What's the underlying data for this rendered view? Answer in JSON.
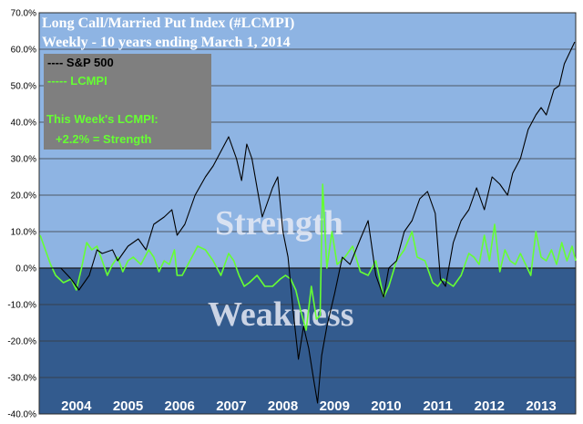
{
  "chart_data": {
    "type": "line",
    "title": "Long Call/Married Put Index (#LCMPI)",
    "subtitle": "Weekly - 10 years ending March 1, 2014",
    "xlabel": "",
    "ylabel": "",
    "ylim": [
      -40,
      70
    ],
    "xlim": [
      2003.78,
      2014.17
    ],
    "y_ticks": [
      "70.0%",
      "60.0%",
      "50.0%",
      "40.0%",
      "30.0%",
      "20.0%",
      "10.0%",
      "0.0%",
      "-10.0%",
      "-20.0%",
      "-30.0%",
      "-40.0%"
    ],
    "y_tick_values": [
      70,
      60,
      50,
      40,
      30,
      20,
      10,
      0,
      -10,
      -20,
      -30,
      -40
    ],
    "x_labels": [
      "2004",
      "2005",
      "2006",
      "2007",
      "2008",
      "2009",
      "2010",
      "2011",
      "2012",
      "2013"
    ],
    "grid": true,
    "legend": {
      "position": "top-left",
      "entries": [
        "---- S&P 500",
        "----- LCMPI"
      ],
      "note_line1": "This Week's LCMPI:",
      "note_line2": "+2.2% = Strength"
    },
    "zones": {
      "above_zero": "Strength",
      "below_zero": "Weakness"
    },
    "colors": {
      "plot_top": "#8eb4e3",
      "plot_bottom": "#335b8e",
      "sp500": "#000000",
      "lcmpi": "#66ff33",
      "legend_box": "#7f7f7f"
    },
    "series": [
      {
        "name": "S&P 500",
        "x": [
          2004.0,
          2004.2,
          2004.4,
          2004.55,
          2004.75,
          2004.9,
          2005.0,
          2005.2,
          2005.3,
          2005.5,
          2005.7,
          2005.85,
          2006.0,
          2006.2,
          2006.35,
          2006.45,
          2006.6,
          2006.8,
          2007.0,
          2007.15,
          2007.3,
          2007.45,
          2007.6,
          2007.7,
          2007.8,
          2007.9,
          2008.0,
          2008.1,
          2008.2,
          2008.3,
          2008.4,
          2008.5,
          2008.6,
          2008.7,
          2008.8,
          2008.9,
          2009.0,
          2009.1,
          2009.17,
          2009.25,
          2009.35,
          2009.5,
          2009.65,
          2009.8,
          2010.0,
          2010.15,
          2010.3,
          2010.45,
          2010.55,
          2010.7,
          2010.85,
          2011.0,
          2011.15,
          2011.3,
          2011.45,
          2011.55,
          2011.65,
          2011.8,
          2011.95,
          2012.1,
          2012.25,
          2012.4,
          2012.55,
          2012.7,
          2012.85,
          2012.95,
          2013.1,
          2013.25,
          2013.4,
          2013.5,
          2013.6,
          2013.75,
          2013.85,
          2013.95,
          2014.05,
          2014.15
        ],
        "y": [
          0,
          0,
          -3,
          -6,
          -2,
          5,
          4,
          5,
          2,
          6,
          8,
          5,
          12,
          14,
          16,
          9,
          12,
          20,
          25,
          28,
          32,
          36,
          30,
          24,
          34,
          30,
          22,
          14,
          18,
          22,
          25,
          10,
          3,
          -12,
          -25,
          -16,
          -22,
          -31,
          -37,
          -24,
          -16,
          -7,
          3,
          1,
          8,
          13,
          -2,
          -8,
          0,
          2,
          10,
          13,
          19,
          21,
          15,
          -3,
          -5,
          7,
          13,
          16,
          22,
          16,
          25,
          23,
          20,
          26,
          30,
          38,
          42,
          44,
          42,
          49,
          50,
          56,
          59,
          62
        ]
      },
      {
        "name": "LCMPI",
        "x": [
          2003.8,
          2003.9,
          2004.0,
          2004.1,
          2004.25,
          2004.4,
          2004.5,
          2004.6,
          2004.7,
          2004.8,
          2004.9,
          2005.0,
          2005.1,
          2005.2,
          2005.3,
          2005.4,
          2005.5,
          2005.6,
          2005.75,
          2005.9,
          2006.0,
          2006.1,
          2006.2,
          2006.3,
          2006.4,
          2006.45,
          2006.55,
          2006.7,
          2006.85,
          2007.0,
          2007.15,
          2007.3,
          2007.45,
          2007.55,
          2007.65,
          2007.75,
          2007.85,
          2008.0,
          2008.15,
          2008.3,
          2008.45,
          2008.55,
          2008.65,
          2008.75,
          2008.85,
          2008.95,
          2009.05,
          2009.15,
          2009.22,
          2009.27,
          2009.35,
          2009.45,
          2009.55,
          2009.7,
          2009.85,
          2010.0,
          2010.15,
          2010.3,
          2010.45,
          2010.55,
          2010.7,
          2010.85,
          2011.0,
          2011.1,
          2011.25,
          2011.4,
          2011.5,
          2011.6,
          2011.7,
          2011.8,
          2011.95,
          2012.1,
          2012.2,
          2012.3,
          2012.4,
          2012.5,
          2012.6,
          2012.7,
          2012.8,
          2012.9,
          2013.0,
          2013.1,
          2013.2,
          2013.3,
          2013.4,
          2013.5,
          2013.6,
          2013.7,
          2013.8,
          2013.9,
          2014.0,
          2014.1,
          2014.17
        ],
        "y": [
          9,
          5,
          1,
          -2,
          -4,
          -3,
          -6,
          0,
          7,
          5,
          6,
          2,
          -2,
          1,
          3,
          -1,
          2,
          3,
          1,
          5,
          3,
          -1,
          2,
          1,
          5,
          -2,
          -2,
          2,
          6,
          5,
          2,
          -2,
          4,
          2,
          -2,
          -5,
          -4,
          -2,
          -5,
          -5,
          -3,
          -2,
          -3,
          -6,
          -12,
          -17,
          -5,
          -14,
          -13,
          23,
          0,
          10,
          1,
          3,
          6,
          -1,
          -2,
          2,
          -8,
          -5,
          2,
          5,
          10,
          3,
          2,
          -4,
          -5,
          -3,
          -4,
          -5,
          -2,
          4,
          3,
          1,
          9,
          2,
          12,
          -1,
          5,
          2,
          1,
          4,
          1,
          -2,
          10,
          3,
          2,
          5,
          1,
          7,
          2,
          6,
          2
        ]
      }
    ]
  }
}
